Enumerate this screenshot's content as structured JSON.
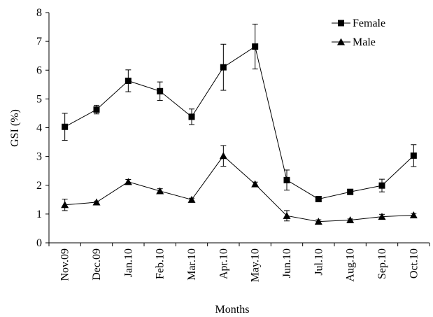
{
  "chart_data": {
    "type": "line",
    "title": "",
    "xlabel": "Months",
    "ylabel": "GSI (%)",
    "ylim": [
      0,
      8
    ],
    "yticks": [
      "0",
      "1",
      "2",
      "3",
      "4",
      "5",
      "6",
      "7",
      "8"
    ],
    "categories": [
      "Nov.09",
      "Dec.09",
      "Jan.10",
      "Feb.10",
      "Mar.10",
      "Apr.10",
      "May.10",
      "Jun.10",
      "Jul.10",
      "Aug.10",
      "Sep.10",
      "Oct.10"
    ],
    "grid": false,
    "legend": "top-right",
    "series": [
      {
        "name": "Female",
        "marker": "square",
        "color": "#000000",
        "values": [
          4.03,
          4.63,
          5.63,
          5.27,
          4.38,
          6.1,
          6.82,
          2.18,
          1.52,
          1.77,
          1.99,
          3.03
        ],
        "errors": [
          0.47,
          0.15,
          0.38,
          0.32,
          0.27,
          0.8,
          0.78,
          0.35,
          0.05,
          0.05,
          0.22,
          0.38
        ]
      },
      {
        "name": "Male",
        "marker": "triangle",
        "color": "#000000",
        "values": [
          1.32,
          1.41,
          2.12,
          1.8,
          1.5,
          3.02,
          2.04,
          0.94,
          0.74,
          0.79,
          0.91,
          0.96
        ],
        "errors": [
          0.2,
          0.04,
          0.08,
          0.08,
          0.05,
          0.36,
          0.07,
          0.18,
          0.06,
          0.04,
          0.08,
          0.06
        ]
      }
    ]
  }
}
